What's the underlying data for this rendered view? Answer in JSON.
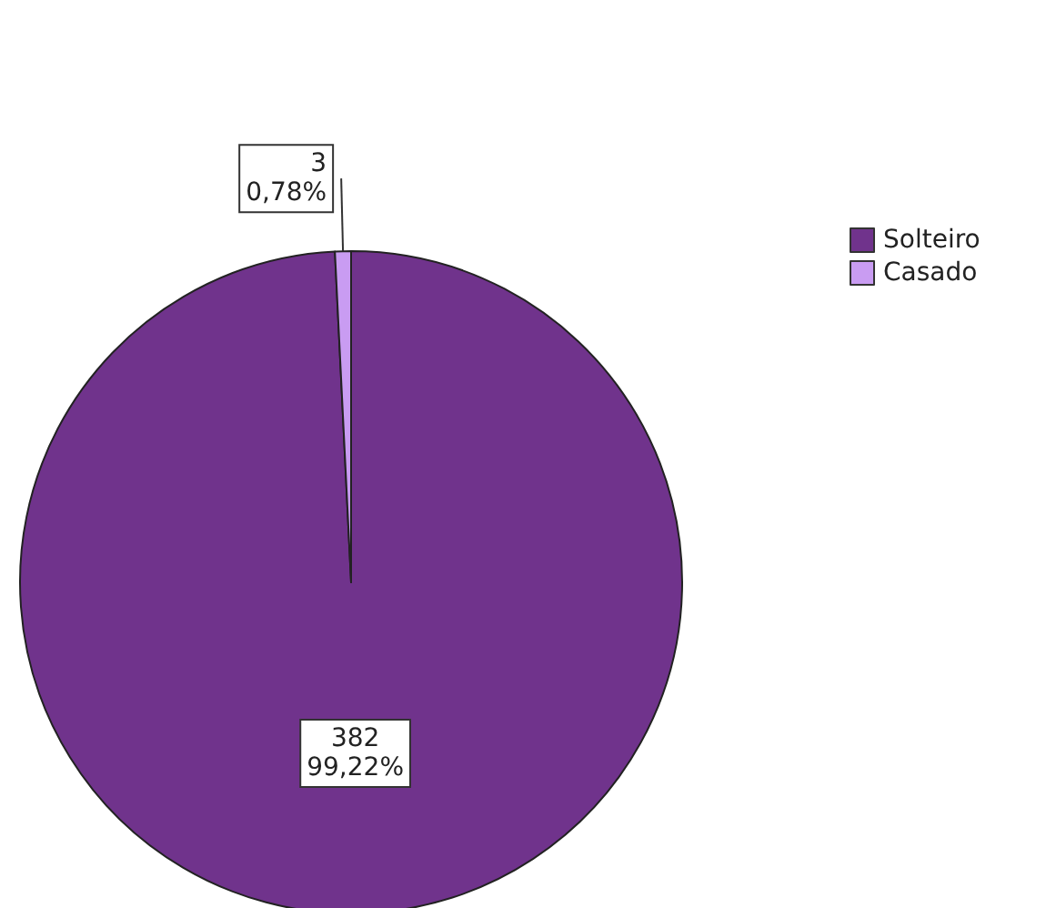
{
  "chart_data": {
    "type": "pie",
    "categories": [
      "Solteiro",
      "Casado"
    ],
    "values": [
      382,
      3
    ],
    "colors": [
      "#70338c",
      "#c99cf2"
    ],
    "value_labels": [
      "382\n99,22%",
      "3\n0,78%"
    ],
    "legend": "top right"
  }
}
